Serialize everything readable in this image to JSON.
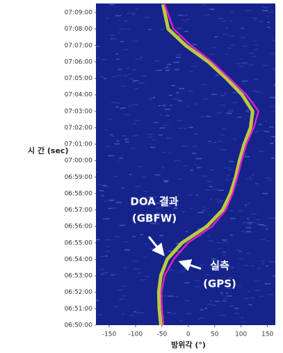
{
  "chart_data": {
    "type": "line",
    "y_label": "시 간 (sec)",
    "x_label": "방위각 (°)",
    "annotations": [
      "DOA 결과",
      "(GBFW)",
      "실측",
      "(GPS)"
    ],
    "times": [
      25770,
      25680,
      25620,
      25560,
      25500,
      25440,
      25380,
      25320,
      25260,
      25200,
      25140,
      25080,
      25020,
      24960,
      24900,
      24840,
      24780,
      24720,
      24660,
      24600
    ],
    "series": [
      {
        "color": "#e020c8",
        "values": [
          -45,
          -28,
          5,
          45,
          78,
          110,
          133,
          124,
          110,
          101,
          93,
          84,
          71,
          45,
          -1,
          -28,
          -45,
          -51,
          -50,
          -47
        ]
      },
      {
        "color": "#d8e830",
        "values": [
          -48,
          -38,
          -5,
          38,
          72,
          102,
          122,
          118,
          106,
          97,
          90,
          80,
          65,
          35,
          -12,
          -40,
          -52,
          -56,
          -55,
          -52
        ]
      }
    ],
    "xlim": [
      -175,
      165
    ],
    "ylim": [
      24600,
      25773
    ],
    "xticks": [
      -150,
      -100,
      -50,
      0,
      50,
      100,
      150
    ],
    "yticks": [
      {
        "value": 24600,
        "label": "06:50:00"
      },
      {
        "value": 24660,
        "label": "06:51:00"
      },
      {
        "value": 24720,
        "label": "06:52:00"
      },
      {
        "value": 24780,
        "label": "06:53:00"
      },
      {
        "value": 24840,
        "label": "06:54:00"
      },
      {
        "value": 24900,
        "label": "06:55:00"
      },
      {
        "value": 24960,
        "label": "06:56:00"
      },
      {
        "value": 25020,
        "label": "06:57:00"
      },
      {
        "value": 25080,
        "label": "06:58:00"
      },
      {
        "value": 25140,
        "label": "06:59:00"
      },
      {
        "value": 25200,
        "label": "07:00:00"
      },
      {
        "value": 25260,
        "label": "07:01:00"
      },
      {
        "value": 25320,
        "label": "07:02:00"
      },
      {
        "value": 25380,
        "label": "07:03:00"
      },
      {
        "value": 25440,
        "label": "07:04:00"
      },
      {
        "value": 25500,
        "label": "07:05:00"
      },
      {
        "value": 25560,
        "label": "07:06:00"
      },
      {
        "value": 25620,
        "label": "07:07:00"
      },
      {
        "value": 25680,
        "label": "07:08:00"
      },
      {
        "value": 25740,
        "label": "07:09:00"
      }
    ]
  }
}
